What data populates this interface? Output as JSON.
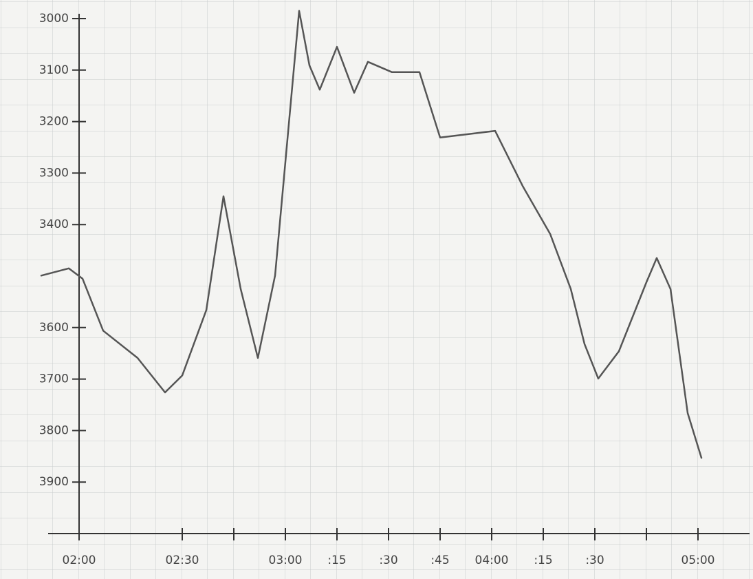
{
  "chart_data": {
    "type": "line",
    "x": [
      "01:49",
      "01:57",
      "02:01",
      "02:07",
      "02:17",
      "02:25",
      "02:30",
      "02:37",
      "02:42",
      "02:47",
      "02:52",
      "02:57",
      "03:01",
      "03:04",
      "03:07",
      "03:10",
      "03:15",
      "03:20",
      "03:24",
      "03:31",
      "03:39",
      "03:45",
      "04:01",
      "04:09",
      "04:17",
      "04:23",
      "04:27",
      "04:31",
      "04:37",
      "04:45",
      "04:48",
      "04:52",
      "04:57",
      "05:01"
    ],
    "series": [
      {
        "color": "#555555",
        "values": [
          3499,
          3485,
          3505,
          3606,
          3659,
          3726,
          3693,
          3566,
          3345,
          3525,
          3659,
          3499,
          3205,
          2985,
          3091,
          3138,
          3055,
          3144,
          3084,
          3104,
          3104,
          3231,
          3218,
          3325,
          3418,
          3525,
          3632,
          3699,
          3646,
          3512,
          3465,
          3525,
          3766,
          3853
        ]
      }
    ],
    "ylim": [
      3000,
      4000
    ],
    "y_inverted": true,
    "yticks": [
      3000,
      3100,
      3200,
      3300,
      3400,
      3600,
      3700,
      3800,
      3900
    ],
    "xlim": [
      "02:00",
      "05:15"
    ],
    "xticks": [
      "02:00",
      "02:30",
      {
        "value": "02:45",
        "label": null
      },
      "03:00",
      {
        "value": "03:15",
        "label": ":15"
      },
      {
        "value": "03:30",
        "label": ":30"
      },
      {
        "value": "03:45",
        "label": ":45"
      },
      "04:00",
      {
        "value": "04:15",
        "label": ":15"
      },
      {
        "value": "04:30",
        "label": ":30"
      },
      {
        "value": "04:45",
        "label": null
      },
      "05:00"
    ]
  }
}
